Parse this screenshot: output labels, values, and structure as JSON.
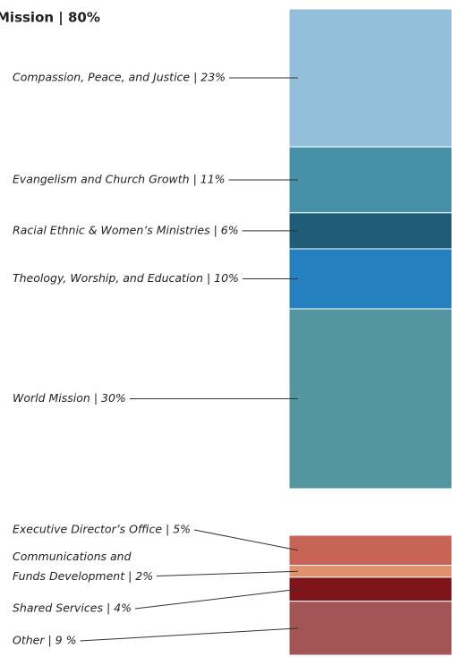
{
  "chart_data": {
    "type": "stacked-column",
    "title": "Mission | 80%",
    "series": [
      {
        "categories": [
          "Compassion, Peace, and Justice | 23%",
          "Evangelism and Church Growth | 11%",
          "Racial Ethnic & Women’s Ministries | 6%",
          "Theology, Worship, and Education | 10%",
          "World Mission | 30%"
        ],
        "values": [
          23,
          11,
          6,
          10,
          30
        ],
        "colors": [
          "#93bfda",
          "#4691a8",
          "#1e5c78",
          "#2580bf",
          "#5496a0"
        ]
      },
      {
        "categories": [
          "Executive Director’s Office | 5%",
          "Communications and\nFunds Development | 2%",
          "Shared Services | 4%",
          "Other | 9 %"
        ],
        "values": [
          5,
          2,
          4,
          9
        ],
        "colors": [
          "#c86455",
          "#e0926e",
          "#7f1518",
          "#a35555"
        ]
      }
    ]
  }
}
